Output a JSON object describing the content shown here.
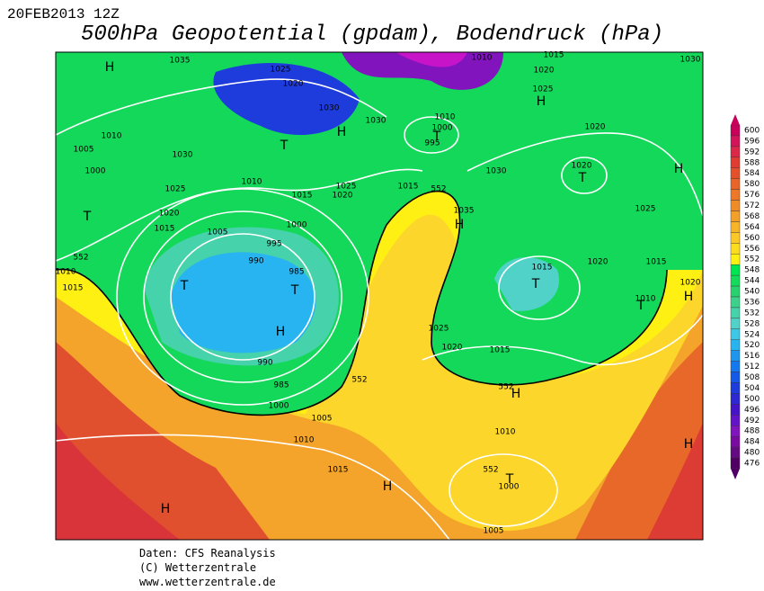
{
  "header": {
    "date": "20FEB2013 12Z",
    "title": "500hPa Geopotential (gpdam), Bodendruck (hPa)"
  },
  "legend": {
    "ticks": [
      600,
      596,
      592,
      588,
      584,
      580,
      576,
      572,
      568,
      564,
      560,
      556,
      552,
      548,
      544,
      540,
      536,
      532,
      528,
      524,
      520,
      516,
      512,
      508,
      504,
      500,
      496,
      492,
      488,
      484,
      480,
      476
    ],
    "colors": [
      "#c8005a",
      "#d4145a",
      "#dc2848",
      "#e03c32",
      "#e4502a",
      "#e86428",
      "#ec7828",
      "#f08c28",
      "#f4a028",
      "#f8b428",
      "#fcc828",
      "#fcdc1e",
      "#fff014",
      "#00e650",
      "#14dc5a",
      "#28d26e",
      "#3cd28c",
      "#46d2aa",
      "#50d2c8",
      "#3cc8e6",
      "#28b4f0",
      "#1e96f0",
      "#1478f0",
      "#145ae6",
      "#1e3cdc",
      "#2d28d2",
      "#4614c8",
      "#6414c8",
      "#8214be",
      "#7a0aa0",
      "#640a82",
      "#500064"
    ]
  },
  "map_labels": [
    "H",
    "1035",
    "1025",
    "1020",
    "1010",
    "1015",
    "1020",
    "1030",
    "1025",
    "H",
    "1030",
    "H",
    "1030",
    "1010",
    "1000",
    "995",
    "T",
    "T",
    "1020",
    "1010",
    "1005",
    "1030",
    "1000",
    "1020",
    "T",
    "H",
    "1030",
    "1010",
    "1025",
    "1020",
    "1015",
    "1015",
    "552",
    "1025",
    "T",
    "1020",
    "1015",
    "1035",
    "H",
    "1025",
    "1005",
    "1000",
    "995",
    "990",
    "985",
    "T",
    "1015",
    "1020",
    "1015",
    "1010",
    "1015",
    "552",
    "T",
    "T",
    "1010",
    "T",
    "H",
    "1020",
    "1025",
    "H",
    "1020",
    "1015",
    "990",
    "552",
    "985",
    "552",
    "H",
    "1000",
    "1005",
    "1010",
    "1010",
    "H",
    "1015",
    "552",
    "T",
    "1000",
    "H",
    "H",
    "1005"
  ],
  "footer": [
    "Daten: CFS Reanalysis",
    "(C) Wetterzentrale",
    "www.wetterzentrale.de"
  ]
}
